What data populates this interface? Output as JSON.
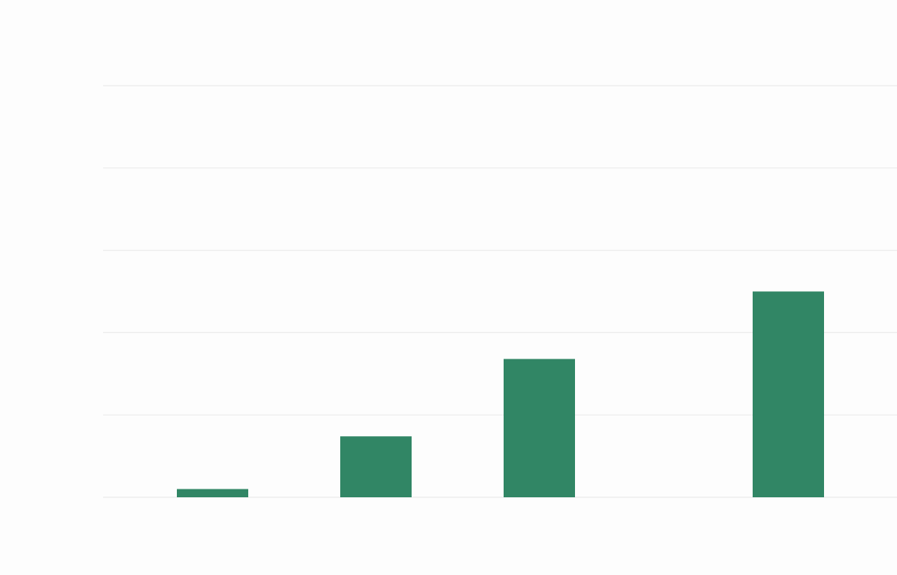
{
  "colors": {
    "background": "#fdfdfd",
    "bar": "#318665",
    "grid": "#ececec"
  },
  "chart_data": {
    "type": "bar",
    "title": "",
    "xlabel": "",
    "ylabel": "",
    "categories": [
      "",
      "",
      "",
      "",
      ""
    ],
    "values": [
      0.1,
      0.74,
      1.68,
      0,
      2.5
    ],
    "ylim": [
      0,
      5
    ],
    "yticks": [
      0,
      1,
      2,
      3,
      4,
      5
    ],
    "grid": true,
    "legend": "none"
  }
}
